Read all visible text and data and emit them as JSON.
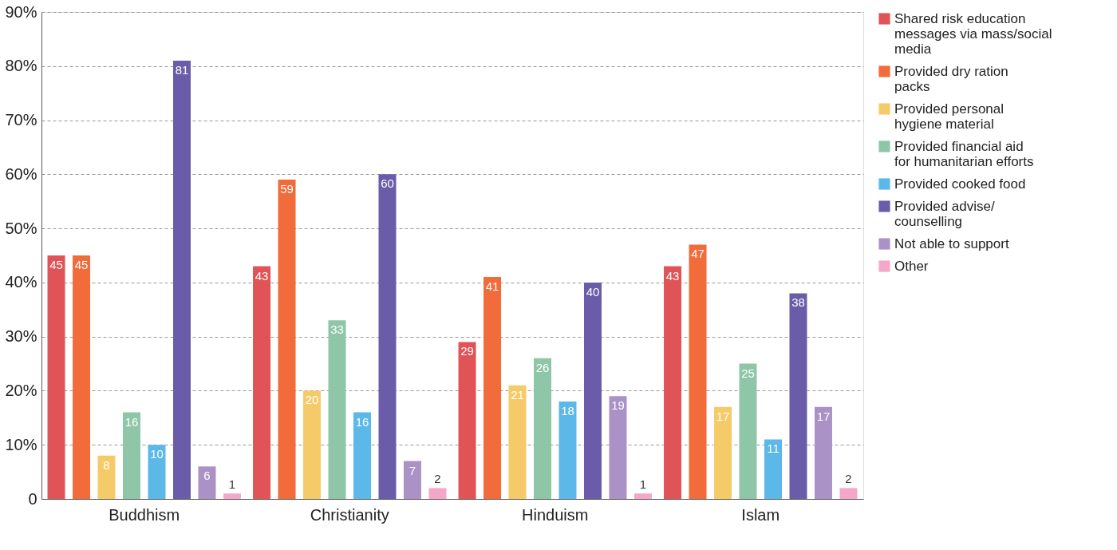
{
  "chart_data": {
    "type": "bar",
    "categories": [
      "Buddhism",
      "Christianity",
      "Hinduism",
      "Islam"
    ],
    "series": [
      {
        "name": "Shared risk education messages via mass/social media",
        "color": "#e05356",
        "values": [
          45,
          43,
          29,
          43
        ]
      },
      {
        "name": "Provided dry ration packs",
        "color": "#f26b3a",
        "values": [
          45,
          59,
          41,
          47
        ]
      },
      {
        "name": "Provided personal hygiene material",
        "color": "#f5cb6a",
        "values": [
          8,
          20,
          21,
          17
        ]
      },
      {
        "name": "Provided financial aid for humanitarian efforts",
        "color": "#8fc6a8",
        "values": [
          16,
          33,
          26,
          25
        ]
      },
      {
        "name": "Provided cooked food",
        "color": "#5bb8e8",
        "values": [
          10,
          16,
          18,
          11
        ]
      },
      {
        "name": "Provided advise/ counselling",
        "color": "#6a5ca8",
        "values": [
          81,
          60,
          40,
          38
        ]
      },
      {
        "name": "Not able to support",
        "color": "#ab92c6",
        "values": [
          6,
          7,
          19,
          17
        ]
      },
      {
        "name": "Other",
        "color": "#f4a7c8",
        "values": [
          1,
          2,
          1,
          2
        ]
      }
    ],
    "ylim": [
      0,
      90
    ],
    "yticks": [
      0,
      {
        "value": 10,
        "label": "10%"
      },
      {
        "value": 20,
        "label": "20%"
      },
      {
        "value": 30,
        "label": "30%"
      },
      {
        "value": 40,
        "label": "40%"
      },
      {
        "value": 50,
        "label": "50%"
      },
      {
        "value": 60,
        "label": "60%"
      },
      {
        "value": 70,
        "label": "70%"
      },
      {
        "value": 80,
        "label": "80%"
      },
      {
        "value": 90,
        "label": "90%"
      }
    ],
    "grid": "y",
    "line_style": "dashed",
    "legend": "right",
    "data_labels": true
  }
}
